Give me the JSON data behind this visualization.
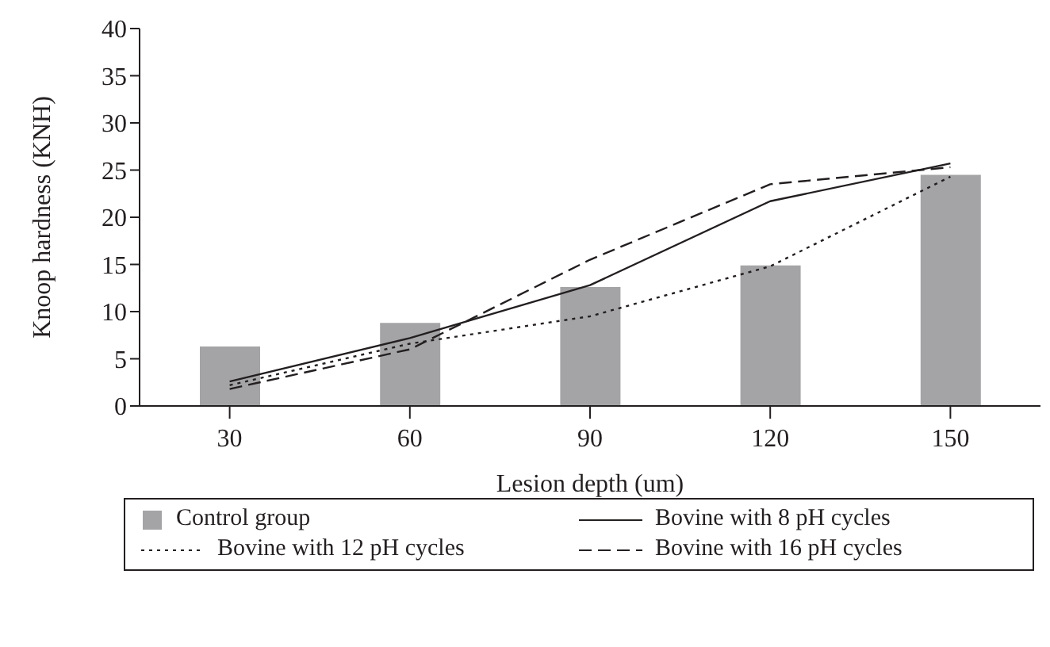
{
  "chart_data": {
    "type": "bar",
    "categories": [
      "30",
      "60",
      "90",
      "120",
      "150"
    ],
    "xlabel": "Lesion depth (um)",
    "ylabel": "Knoop hardness (KNH)",
    "ylim": [
      0,
      40
    ],
    "yticks": [
      0,
      5,
      10,
      15,
      20,
      25,
      30,
      35,
      40
    ],
    "grid": false,
    "legend": "bottom",
    "series": [
      {
        "name": "Control group",
        "color": "#a4a4a6",
        "values": [
          6.3,
          8.8,
          12.6,
          14.9,
          24.5
        ]
      },
      {
        "name": "Bovine with 8 pH cycles",
        "type": "line",
        "color": "#231f20",
        "line_style": "solid",
        "values": [
          2.6,
          7.2,
          12.8,
          21.7,
          25.7
        ]
      },
      {
        "name": "Bovine with 12 pH cycles",
        "type": "line",
        "color": "#231f20",
        "line_style": "dotted",
        "values": [
          2.2,
          6.6,
          9.5,
          14.8,
          24.3
        ]
      },
      {
        "name": "Bovine with 16 pH cycles",
        "type": "line",
        "color": "#231f20",
        "line_style": "dashed",
        "values": [
          1.8,
          6.0,
          15.5,
          23.5,
          25.3
        ]
      }
    ]
  }
}
